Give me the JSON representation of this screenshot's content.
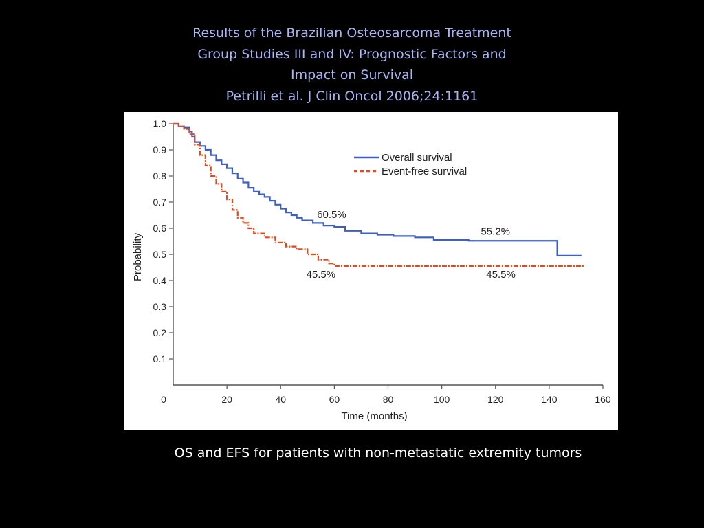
{
  "slide": {
    "title_lines": [
      "Results of the Brazilian Osteosarcoma Treatment",
      "Group Studies III and IV: Prognostic Factors and",
      "Impact on Survival",
      "Petrilli et al. J Clin Oncol 2006;24:1161"
    ],
    "caption": "OS and EFS for patients with non-metastatic extremity tumors"
  },
  "chart_data": {
    "type": "line",
    "xlabel": "Time (months)",
    "ylabel": "Probability",
    "xlim": [
      0,
      160
    ],
    "ylim": [
      0,
      1.0
    ],
    "x_ticks": [
      "0",
      "20",
      "40",
      "60",
      "80",
      "100",
      "120",
      "140",
      "160"
    ],
    "y_ticks": [
      "0.1",
      "0.2",
      "0.3",
      "0.4",
      "0.5",
      "0.6",
      "0.7",
      "0.8",
      "0.9",
      "1.0"
    ],
    "grid": false,
    "legend_position": "top-right",
    "series": [
      {
        "name": "Overall survival",
        "style": "solid-step",
        "color": "#3d5fc4",
        "points": [
          [
            0,
            1.0
          ],
          [
            2,
            0.99
          ],
          [
            4,
            0.985
          ],
          [
            6,
            0.97
          ],
          [
            7,
            0.95
          ],
          [
            8,
            0.93
          ],
          [
            10,
            0.915
          ],
          [
            12,
            0.9
          ],
          [
            14,
            0.88
          ],
          [
            16,
            0.86
          ],
          [
            18,
            0.845
          ],
          [
            20,
            0.83
          ],
          [
            22,
            0.81
          ],
          [
            24,
            0.79
          ],
          [
            26,
            0.775
          ],
          [
            28,
            0.755
          ],
          [
            30,
            0.74
          ],
          [
            32,
            0.73
          ],
          [
            34,
            0.72
          ],
          [
            36,
            0.705
          ],
          [
            38,
            0.69
          ],
          [
            40,
            0.675
          ],
          [
            42,
            0.66
          ],
          [
            44,
            0.65
          ],
          [
            46,
            0.64
          ],
          [
            48,
            0.63
          ],
          [
            52,
            0.62
          ],
          [
            56,
            0.61
          ],
          [
            60,
            0.605
          ],
          [
            64,
            0.59
          ],
          [
            70,
            0.58
          ],
          [
            76,
            0.575
          ],
          [
            82,
            0.57
          ],
          [
            90,
            0.565
          ],
          [
            97,
            0.555
          ],
          [
            110,
            0.552
          ],
          [
            130,
            0.552
          ],
          [
            143,
            0.552
          ],
          [
            143,
            0.495
          ],
          [
            152,
            0.495
          ]
        ]
      },
      {
        "name": "Event-free survival",
        "style": "dash-dot-step",
        "color": "#e24a1c",
        "points": [
          [
            0,
            1.0
          ],
          [
            2,
            0.99
          ],
          [
            4,
            0.98
          ],
          [
            6,
            0.96
          ],
          [
            8,
            0.92
          ],
          [
            10,
            0.88
          ],
          [
            12,
            0.84
          ],
          [
            14,
            0.8
          ],
          [
            16,
            0.77
          ],
          [
            18,
            0.74
          ],
          [
            20,
            0.71
          ],
          [
            22,
            0.67
          ],
          [
            24,
            0.64
          ],
          [
            26,
            0.62
          ],
          [
            28,
            0.6
          ],
          [
            30,
            0.58
          ],
          [
            34,
            0.565
          ],
          [
            38,
            0.545
          ],
          [
            42,
            0.53
          ],
          [
            46,
            0.52
          ],
          [
            50,
            0.5
          ],
          [
            54,
            0.48
          ],
          [
            58,
            0.465
          ],
          [
            60,
            0.455
          ],
          [
            80,
            0.455
          ],
          [
            100,
            0.455
          ],
          [
            130,
            0.455
          ],
          [
            153,
            0.455
          ]
        ]
      }
    ],
    "annotations": [
      {
        "text": "60.5%",
        "x": 59,
        "y": 0.64
      },
      {
        "text": "55.2%",
        "x": 120,
        "y": 0.575
      },
      {
        "text": "45.5%",
        "x": 55,
        "y": 0.41
      },
      {
        "text": "45.5%",
        "x": 122,
        "y": 0.41
      }
    ]
  }
}
